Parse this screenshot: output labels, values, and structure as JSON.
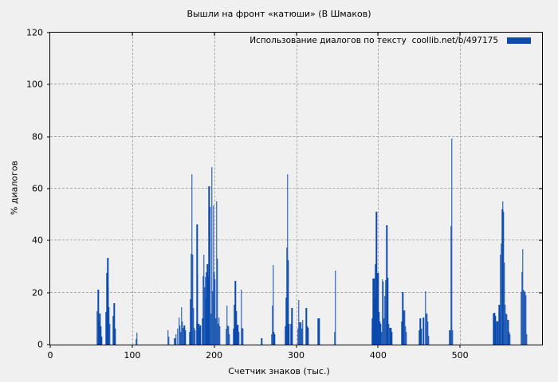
{
  "chart_data": {
    "type": "bar",
    "subtype": "impulses",
    "title": "Вышли на фронт «катюши» (В Шмаков)",
    "xlabel": "Счетчик знаков (тыс.)",
    "ylabel": "% диалогов",
    "legend": "Использование диалогов по тексту  coollib.net/b/497175",
    "legend_position": "top-right",
    "grid": true,
    "color": "#0b4aad",
    "background": "#f0f0f0",
    "xlim": [
      0,
      600
    ],
    "ylim": [
      0,
      120
    ],
    "x_ticks": [
      0,
      100,
      200,
      300,
      400,
      500
    ],
    "y_ticks": [
      0,
      20,
      40,
      60,
      80,
      100,
      120
    ],
    "points": [
      [
        57,
        13
      ],
      [
        58.5,
        21
      ],
      [
        59.5,
        9
      ],
      [
        60.5,
        12
      ],
      [
        61.5,
        7
      ],
      [
        62.5,
        3
      ],
      [
        68.5,
        12.5
      ],
      [
        69.5,
        27.5
      ],
      [
        70.2,
        33.5
      ],
      [
        71,
        22
      ],
      [
        72,
        14.5
      ],
      [
        73,
        8
      ],
      [
        77,
        11
      ],
      [
        78,
        16
      ],
      [
        79,
        6
      ],
      [
        105,
        2
      ],
      [
        106,
        4.5
      ],
      [
        144,
        5.5
      ],
      [
        145,
        3
      ],
      [
        152,
        2.5
      ],
      [
        153.5,
        4
      ],
      [
        155.5,
        6
      ],
      [
        157.5,
        10.5
      ],
      [
        158.5,
        7.5
      ],
      [
        159.5,
        5
      ],
      [
        160.5,
        14.5
      ],
      [
        161.5,
        9
      ],
      [
        162.5,
        6.5
      ],
      [
        163.5,
        7.5
      ],
      [
        164.5,
        5.5
      ],
      [
        170.5,
        5
      ],
      [
        171.5,
        17.5
      ],
      [
        172.2,
        35
      ],
      [
        173,
        65.5
      ],
      [
        174,
        34.5
      ],
      [
        175,
        14
      ],
      [
        176,
        6.5
      ],
      [
        177,
        5.5
      ],
      [
        178.5,
        9
      ],
      [
        179.2,
        46.3
      ],
      [
        180,
        27
      ],
      [
        181,
        8
      ],
      [
        182,
        6.5
      ],
      [
        183,
        7.5
      ],
      [
        186,
        10
      ],
      [
        186.8,
        26.3
      ],
      [
        187.6,
        34.5
      ],
      [
        188.4,
        22
      ],
      [
        189.2,
        26
      ],
      [
        190,
        18
      ],
      [
        191,
        28
      ],
      [
        192,
        31
      ],
      [
        193,
        26
      ],
      [
        194,
        61
      ],
      [
        195,
        53
      ],
      [
        196,
        12
      ],
      [
        197,
        68.2
      ],
      [
        198,
        20.5
      ],
      [
        199,
        53.5
      ],
      [
        200,
        28
      ],
      [
        201,
        25
      ],
      [
        202,
        10
      ],
      [
        203,
        55
      ],
      [
        204,
        33
      ],
      [
        205,
        8
      ],
      [
        206,
        10.5
      ],
      [
        207,
        7
      ],
      [
        214.5,
        6
      ],
      [
        215.5,
        15
      ],
      [
        216.5,
        7.5
      ],
      [
        217.5,
        7
      ],
      [
        218.5,
        4
      ],
      [
        224,
        6
      ],
      [
        225,
        15.3
      ],
      [
        226,
        24.5
      ],
      [
        227,
        13
      ],
      [
        228,
        7
      ],
      [
        229,
        7.7
      ],
      [
        230,
        5
      ],
      [
        233,
        21
      ],
      [
        234,
        6.5
      ],
      [
        235,
        6
      ],
      [
        258,
        2.5
      ],
      [
        270,
        4
      ],
      [
        271,
        15
      ],
      [
        271.8,
        30.5
      ],
      [
        272.6,
        5
      ],
      [
        273.5,
        4
      ],
      [
        287,
        7
      ],
      [
        288,
        18
      ],
      [
        288.7,
        37.5
      ],
      [
        289.4,
        65.4
      ],
      [
        290.2,
        32.5
      ],
      [
        291,
        8
      ],
      [
        294,
        8
      ],
      [
        295,
        14
      ],
      [
        302.5,
        6
      ],
      [
        303.2,
        17.3
      ],
      [
        304,
        8.5
      ],
      [
        305,
        8.5
      ],
      [
        306,
        8.5
      ],
      [
        307,
        6
      ],
      [
        308,
        9.5
      ],
      [
        312.6,
        14
      ],
      [
        313.5,
        7
      ],
      [
        314.5,
        6.5
      ],
      [
        327,
        10
      ],
      [
        328,
        10
      ],
      [
        347,
        5
      ],
      [
        348,
        28.5
      ],
      [
        392.5,
        6
      ],
      [
        393.2,
        10
      ],
      [
        394,
        25.3
      ],
      [
        395,
        25.3
      ],
      [
        396,
        18
      ],
      [
        397,
        31
      ],
      [
        398,
        51
      ],
      [
        399,
        27.3
      ],
      [
        400,
        27.6
      ],
      [
        401,
        12.6
      ],
      [
        402,
        9
      ],
      [
        403,
        8
      ],
      [
        404.5,
        5
      ],
      [
        405.5,
        25
      ],
      [
        406.5,
        24.2
      ],
      [
        407.5,
        10
      ],
      [
        408.2,
        18.7
      ],
      [
        409,
        24.7
      ],
      [
        410,
        8
      ],
      [
        410.8,
        46
      ],
      [
        411.8,
        25.6
      ],
      [
        413,
        8
      ],
      [
        414.5,
        6.3
      ],
      [
        415.5,
        6.3
      ],
      [
        416.5,
        5
      ],
      [
        429,
        9
      ],
      [
        430,
        20.3
      ],
      [
        430.8,
        12.6
      ],
      [
        431.6,
        13.3
      ],
      [
        432.6,
        13.2
      ],
      [
        433.5,
        7
      ],
      [
        434.3,
        5
      ],
      [
        450.5,
        5.5
      ],
      [
        451.5,
        10.1
      ],
      [
        452.5,
        6
      ],
      [
        455.3,
        10.4
      ],
      [
        458,
        20.4
      ],
      [
        459,
        12
      ],
      [
        460,
        11.8
      ],
      [
        461,
        9
      ],
      [
        462,
        3.4
      ],
      [
        487.5,
        5.5
      ],
      [
        489,
        45.5
      ],
      [
        490,
        79.2
      ],
      [
        491,
        5.5
      ],
      [
        541,
        12
      ],
      [
        542,
        12.2
      ],
      [
        543,
        11
      ],
      [
        544.7,
        9
      ],
      [
        545.6,
        9.2
      ],
      [
        546.6,
        9
      ],
      [
        547.6,
        15.2
      ],
      [
        548.5,
        13
      ],
      [
        549.5,
        34.5
      ],
      [
        550.5,
        39
      ],
      [
        551.5,
        52
      ],
      [
        552.4,
        55
      ],
      [
        553.4,
        51
      ],
      [
        554.4,
        31.5
      ],
      [
        555.3,
        15.2
      ],
      [
        556.3,
        11.8
      ],
      [
        557.3,
        11.5
      ],
      [
        558.3,
        9.5
      ],
      [
        559.2,
        9.5
      ],
      [
        560.2,
        5
      ],
      [
        561.2,
        4
      ],
      [
        574.8,
        20.3
      ],
      [
        575.7,
        28
      ],
      [
        576.7,
        36.8
      ],
      [
        577.7,
        21
      ],
      [
        578.7,
        20.4
      ],
      [
        579.6,
        20.2
      ],
      [
        580.6,
        19
      ],
      [
        581.5,
        4
      ]
    ]
  }
}
